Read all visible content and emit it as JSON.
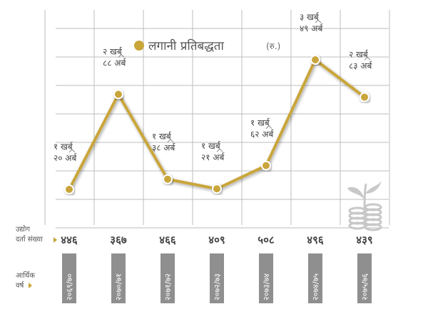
{
  "colors": {
    "series": "#C9A53A",
    "grid": "#BDBDBD",
    "year_box": "#8F8F8F",
    "icon": "#C8C8C8"
  },
  "legend": {
    "label": "लगानी प्रतिबद्धता",
    "unit": "(रु.)"
  },
  "row_labels": {
    "registrations_line1": "उद्योग",
    "registrations_line2": "दर्ता संख्या",
    "year_line1": "आर्थिक",
    "year_line2": "वर्ष"
  },
  "icon": "money-plant-coins-icon",
  "chart_data": {
    "type": "line",
    "categories": [
      "२०६९/७०",
      "२०७०/७१",
      "२०७१/७२",
      "२०७२/७३",
      "२०७३/७४",
      "२०७४/७५",
      "२०७५/७६"
    ],
    "registrations": [
      "४४६",
      "३६७",
      "४६६",
      "४०९",
      "५०८",
      "४९६",
      "४३९"
    ],
    "series": [
      {
        "name": "लगानी प्रतिबद्धता",
        "values": [
          120,
          288,
          138,
          121,
          162,
          349,
          283
        ],
        "labels": [
          [
            "१ खर्ब",
            "२० अर्ब"
          ],
          [
            "२ खर्ब",
            "८८ अर्ब"
          ],
          [
            "१ खर्ब",
            "३८ अर्ब"
          ],
          [
            "१ खर्ब",
            "२१ अर्ब"
          ],
          [
            "१ खर्ब",
            "६२ अर्ब"
          ],
          [
            "३ खर्ब",
            "४९ अर्ब"
          ],
          [
            "२ खर्ब",
            "८३ अर्ब"
          ]
        ]
      }
    ],
    "value_unit": "अर्ब",
    "grid": true
  }
}
